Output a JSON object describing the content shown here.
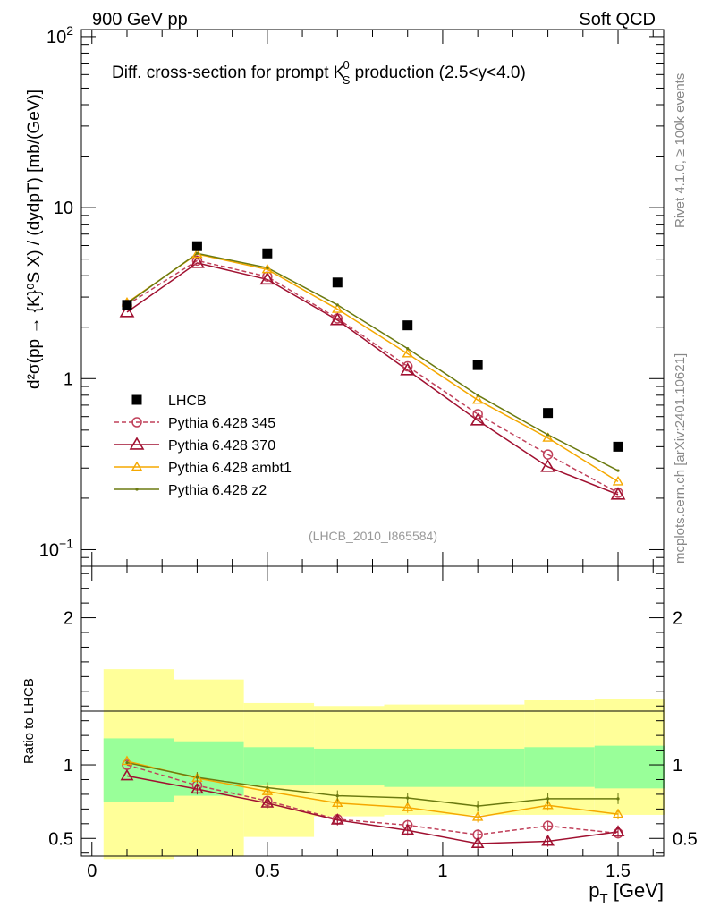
{
  "header": {
    "left": "900 GeV pp",
    "right": "Soft QCD"
  },
  "side": {
    "rivet": "Rivet 4.1.0, ≥ 100k events",
    "mcplots": "mcplots.cern.ch [arXiv:2401.10621]"
  },
  "colors": {
    "lhcb": "#000000",
    "p345": "#c0405a",
    "p370": "#a01030",
    "ambt1": "#f5a800",
    "z2": "#6b7a10",
    "band_green": "#99ff99",
    "band_yellow": "#ffff99"
  },
  "chart_data": [
    {
      "type": "scatter",
      "panel": "main",
      "title_pre": "Diff. cross-section for prompt K",
      "title_sup": "0",
      "title_sub": "S",
      "title_post": " production (2.5<y<4.0)",
      "analysis_tag": "(LHCB_2010_I865584)",
      "ylabel": "d²σ(pp → {K}⁰S X) / (dydpT) [mb/(GeV)]",
      "yscale": "log",
      "ylim": [
        0.08,
        110
      ],
      "xlim": [
        -0.03,
        1.63
      ],
      "yticks": [
        {
          "value": 100,
          "base": "10",
          "exp": "2"
        },
        {
          "value": 10,
          "base": "10",
          "exp": ""
        },
        {
          "value": 1,
          "base": "1",
          "exp": ""
        },
        {
          "value": 0.1,
          "base": "10",
          "exp": "−1"
        }
      ],
      "x": [
        0.1,
        0.3,
        0.5,
        0.7,
        0.9,
        1.1,
        1.3,
        1.5
      ],
      "legend": [
        {
          "key": "lhcb",
          "label": "LHCB"
        },
        {
          "key": "p345",
          "label": "Pythia 6.428 345"
        },
        {
          "key": "p370",
          "label": "Pythia 6.428 370"
        },
        {
          "key": "ambt1",
          "label": "Pythia 6.428 ambt1"
        },
        {
          "key": "z2",
          "label": "Pythia 6.428 z2"
        }
      ],
      "series": [
        {
          "key": "lhcb",
          "name": "LHCB",
          "values": [
            2.7,
            5.95,
            5.4,
            3.65,
            2.05,
            1.2,
            0.63,
            0.4
          ]
        },
        {
          "key": "p345",
          "name": "Pythia 6.428 345",
          "values": [
            2.7,
            4.9,
            3.95,
            2.25,
            1.18,
            0.62,
            0.36,
            0.215
          ]
        },
        {
          "key": "p370",
          "name": "Pythia 6.428 370",
          "values": [
            2.45,
            4.75,
            3.8,
            2.2,
            1.12,
            0.57,
            0.305,
            0.21
          ]
        },
        {
          "key": "ambt1",
          "name": "Pythia 6.428 ambt1",
          "values": [
            2.78,
            5.35,
            4.35,
            2.55,
            1.4,
            0.75,
            0.45,
            0.25
          ]
        },
        {
          "key": "z2",
          "name": "Pythia 6.428 z2",
          "values": [
            2.75,
            5.4,
            4.45,
            2.7,
            1.5,
            0.8,
            0.47,
            0.29
          ]
        }
      ]
    },
    {
      "type": "line",
      "panel": "ratio",
      "ylabel": "Ratio to LHCB",
      "xlabel_base": "p",
      "xlabel_sub": "T",
      "xlabel_unit": " [GeV]",
      "ylim": [
        0.38,
        2.35
      ],
      "xlim": [
        -0.03,
        1.63
      ],
      "yticks": [
        {
          "value": 2,
          "label": "2"
        },
        {
          "value": 1,
          "label": "1"
        },
        {
          "value": 0.5,
          "label": "0.5"
        }
      ],
      "xticks": [
        {
          "value": 0,
          "label": "0"
        },
        {
          "value": 0.5,
          "label": "0.5"
        },
        {
          "value": 1,
          "label": "1"
        },
        {
          "value": 1.5,
          "label": "1.5"
        }
      ],
      "bins": [
        [
          0.0,
          0.2
        ],
        [
          0.2,
          0.4
        ],
        [
          0.4,
          0.6
        ],
        [
          0.6,
          0.8
        ],
        [
          0.8,
          1.2
        ],
        [
          1.2,
          1.4
        ],
        [
          1.4,
          1.6
        ]
      ],
      "band_green": [
        [
          0.75,
          1.18
        ],
        [
          0.79,
          1.16
        ],
        [
          0.86,
          1.12
        ],
        [
          0.86,
          1.11
        ],
        [
          0.85,
          1.11
        ],
        [
          0.85,
          1.12
        ],
        [
          0.84,
          1.13
        ]
      ],
      "band_yellow": [
        [
          0.36,
          1.65
        ],
        [
          0.38,
          1.58
        ],
        [
          0.51,
          1.42
        ],
        [
          0.65,
          1.4
        ],
        [
          0.66,
          1.41
        ],
        [
          0.66,
          1.44
        ],
        [
          0.66,
          1.45
        ]
      ],
      "x": [
        0.1,
        0.3,
        0.5,
        0.7,
        0.9,
        1.1,
        1.3,
        1.5
      ],
      "series": [
        {
          "key": "p345",
          "name": "Pythia 6.428 345",
          "values": [
            1.0,
            0.86,
            0.755,
            0.63,
            0.59,
            0.525,
            0.585,
            0.535
          ]
        },
        {
          "key": "p370",
          "name": "Pythia 6.428 370",
          "values": [
            0.925,
            0.835,
            0.74,
            0.625,
            0.555,
            0.465,
            0.48,
            0.545
          ]
        },
        {
          "key": "ambt1",
          "name": "Pythia 6.428 ambt1",
          "values": [
            1.025,
            0.91,
            0.82,
            0.74,
            0.71,
            0.645,
            0.725,
            0.665
          ]
        },
        {
          "key": "z2",
          "name": "Pythia 6.428 z2",
          "values": [
            1.015,
            0.915,
            0.845,
            0.79,
            0.775,
            0.72,
            0.77,
            0.77
          ]
        }
      ]
    }
  ]
}
